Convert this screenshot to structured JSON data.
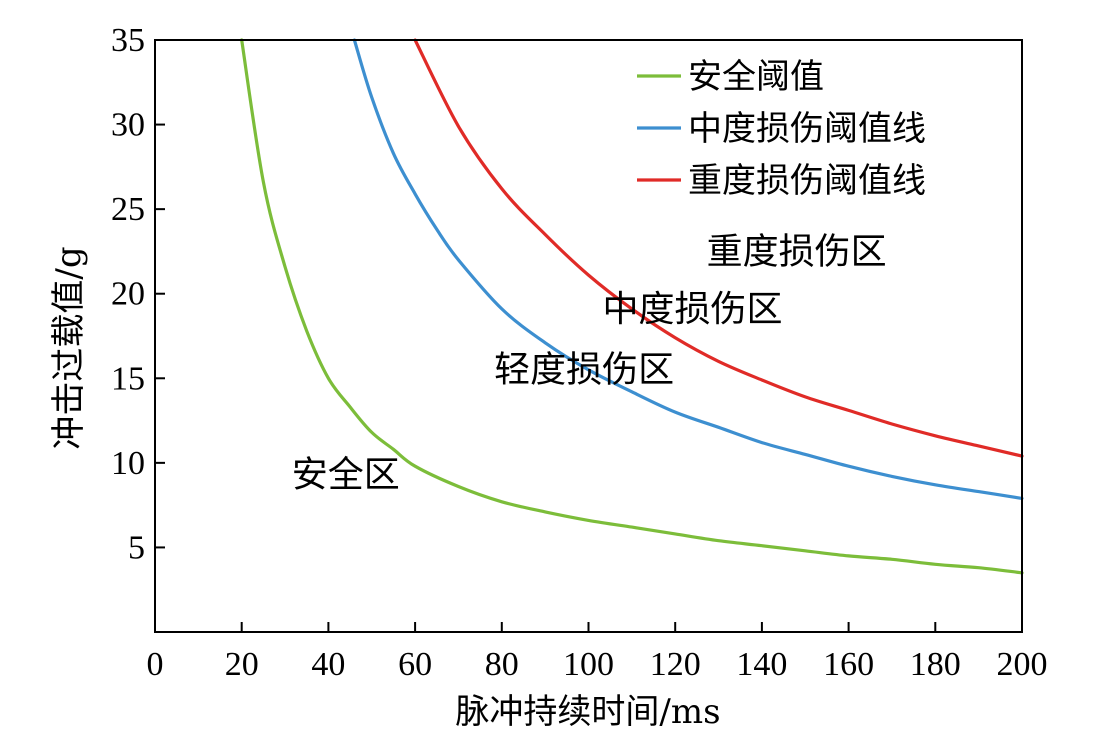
{
  "chart_data": {
    "type": "line",
    "xlabel": "脉冲持续时间/ms",
    "ylabel": "冲击过载值/g",
    "xlim": [
      0,
      200
    ],
    "ylim": [
      0,
      35
    ],
    "xticks": [
      0,
      20,
      40,
      60,
      80,
      100,
      120,
      140,
      160,
      180,
      200
    ],
    "yticks": [
      5,
      10,
      15,
      20,
      25,
      30,
      35
    ],
    "grid": false,
    "legend_position": "top-right",
    "series": [
      {
        "name": "安全阈值",
        "color": "#7cbd3a",
        "x": [
          20,
          25,
          30,
          35,
          40,
          45,
          50,
          55,
          60,
          70,
          80,
          90,
          100,
          110,
          120,
          130,
          140,
          150,
          160,
          170,
          180,
          190,
          200
        ],
        "y": [
          35,
          26.6,
          21.6,
          17.8,
          15.0,
          13.3,
          11.8,
          10.8,
          9.8,
          8.6,
          7.7,
          7.1,
          6.6,
          6.2,
          5.8,
          5.4,
          5.1,
          4.8,
          4.5,
          4.3,
          4.0,
          3.8,
          3.5
        ]
      },
      {
        "name": "中度损伤阈值线",
        "color": "#3d8fd0",
        "x": [
          46,
          50,
          55,
          60,
          65,
          70,
          80,
          90,
          100,
          110,
          120,
          130,
          140,
          150,
          160,
          170,
          180,
          190,
          200
        ],
        "y": [
          35,
          31.6,
          28.3,
          25.9,
          23.8,
          22.0,
          19.1,
          17.1,
          15.5,
          14.2,
          13.0,
          12.1,
          11.2,
          10.5,
          9.8,
          9.2,
          8.7,
          8.3,
          7.9
        ]
      },
      {
        "name": "重度损伤阈值线",
        "color": "#e02b27",
        "x": [
          60,
          70,
          80,
          90,
          100,
          110,
          120,
          130,
          140,
          150,
          160,
          170,
          180,
          190,
          200
        ],
        "y": [
          35,
          29.9,
          26.2,
          23.5,
          21.1,
          19.1,
          17.4,
          16.0,
          14.9,
          13.9,
          13.1,
          12.3,
          11.6,
          11.0,
          10.4
        ]
      }
    ],
    "annotations": [
      {
        "text": "重度损伤区",
        "x": 148,
        "y": 21.8
      },
      {
        "text": "中度损伤区",
        "x": 124,
        "y": 18.4
      },
      {
        "text": "轻度损伤区",
        "x": 99,
        "y": 14.8
      },
      {
        "text": "安全区",
        "x": 44,
        "y": 8.6
      }
    ]
  }
}
